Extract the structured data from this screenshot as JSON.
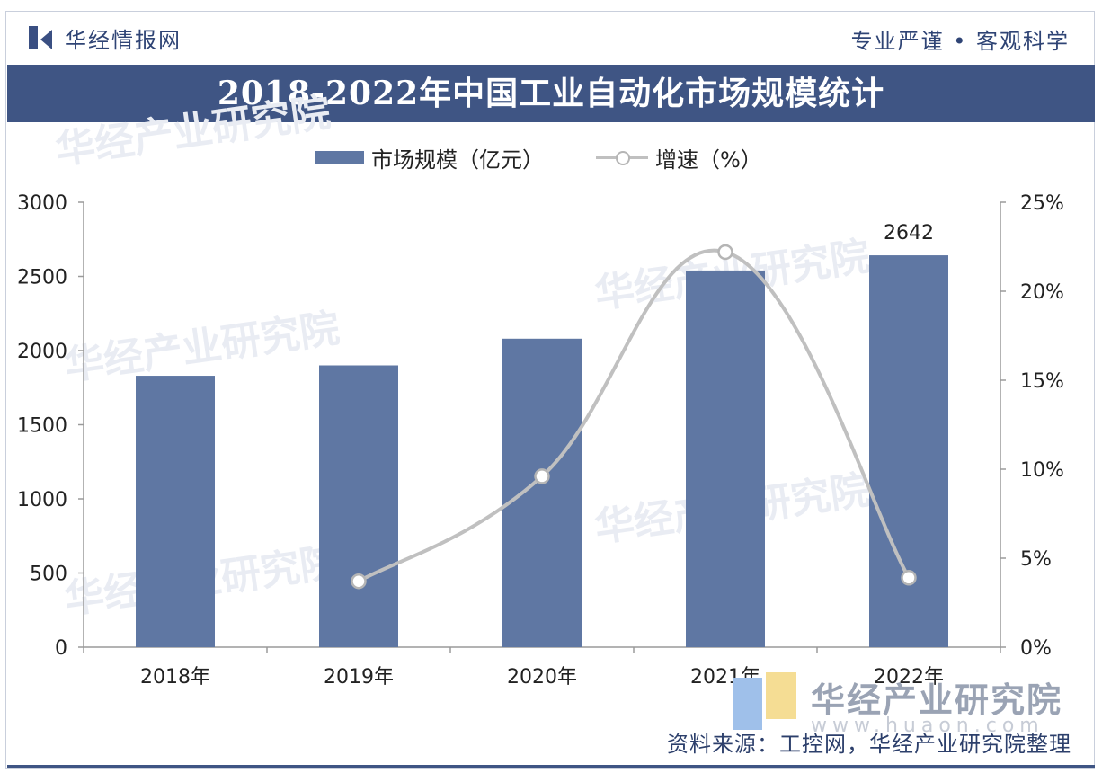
{
  "header": {
    "brand": "华经情报网",
    "slogan": "专业严谨 • 客观科学"
  },
  "colors": {
    "bar": "#5f77a3",
    "line": "#c0c0c0",
    "title_bar": "#3f5584"
  },
  "watermark": {
    "text": "华经产业研究院"
  },
  "footer": {
    "brand": "华经产业研究院",
    "url": "www.huaon.com",
    "source": "资料来源：工控网，华经产业研究院整理"
  },
  "chart_data": {
    "type": "bar",
    "title": "2018-2022年中国工业自动化市场规模统计",
    "categories": [
      "2018年",
      "2019年",
      "2020年",
      "2021年",
      "2022年"
    ],
    "series": [
      {
        "name": "市场规模（亿元）",
        "type": "bar",
        "axis": "left",
        "values": [
          1830,
          1900,
          2080,
          2540,
          2642
        ]
      },
      {
        "name": "增速（%）",
        "type": "line",
        "axis": "right",
        "values": [
          null,
          3.7,
          9.6,
          22.2,
          3.9
        ]
      }
    ],
    "data_labels": [
      {
        "series": 0,
        "index": 4,
        "text": "2642"
      }
    ],
    "y_left": {
      "min": 0,
      "max": 3000,
      "ticks": [
        "0",
        "500",
        "1000",
        "1500",
        "2000",
        "2500",
        "3000"
      ]
    },
    "y_right": {
      "min": 0,
      "max": 25,
      "ticks": [
        "0%",
        "5%",
        "10%",
        "15%",
        "20%",
        "25%"
      ]
    },
    "legend_position": "top",
    "grid": false
  }
}
